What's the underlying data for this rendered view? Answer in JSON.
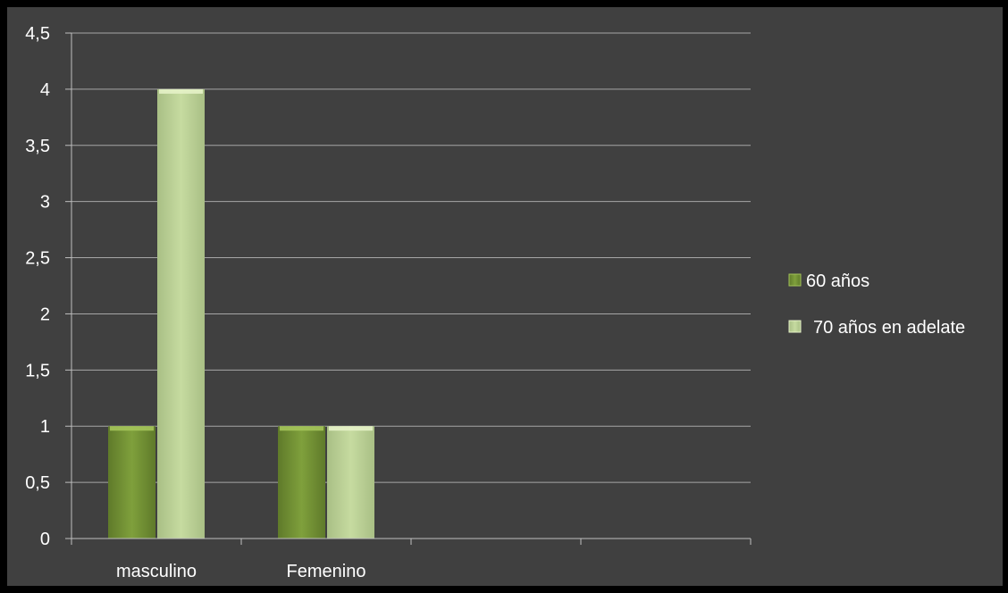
{
  "chart_data": {
    "type": "bar",
    "categories": [
      "masculino",
      "Femenino",
      "",
      ""
    ],
    "series": [
      {
        "name": "60 años",
        "values": [
          1,
          1,
          null,
          null
        ]
      },
      {
        "name": "70 años en adelate",
        "values": [
          4,
          1,
          null,
          null
        ]
      }
    ],
    "ylim": [
      0,
      4.5
    ],
    "y_ticks": [
      "0",
      "0,5",
      "1",
      "1,5",
      "2",
      "2,5",
      "3",
      "3,5",
      "4",
      "4,5"
    ],
    "grid": true,
    "legend_position": "right",
    "colors": {
      "background": "#000000",
      "plot_area": "#404040",
      "gridline": "#a6a6a6",
      "axis": "#bfbfbf",
      "text": "#ffffff",
      "series_1": "#77933c",
      "series_2": "#c3d69b"
    }
  }
}
